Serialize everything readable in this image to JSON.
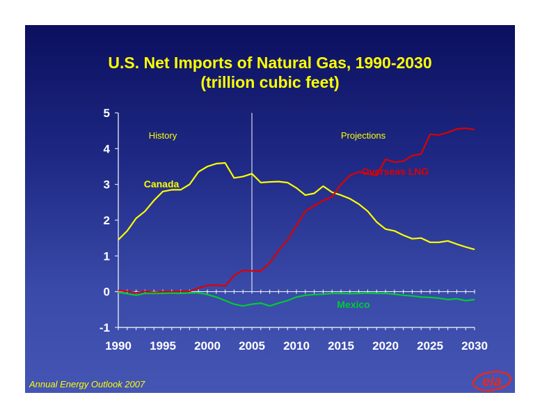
{
  "slide": {
    "title_line1": "U.S. Net Imports of Natural Gas, 1990-2030",
    "title_line2": "(trillion cubic feet)",
    "footer": "Annual Energy Outlook 2007",
    "logo_text": "eia"
  },
  "colors": {
    "title": "#ffff00",
    "axis": "#ffffff",
    "canada": "#ffff00",
    "lng": "#dd0000",
    "mexico": "#00cc33",
    "history_label": "#ffff00"
  },
  "chart_data": {
    "type": "line",
    "title": "U.S. Net Imports of Natural Gas, 1990-2030",
    "subtitle": "(trillion cubic feet)",
    "xlabel": "",
    "ylabel": "",
    "xlim": [
      1990,
      2030
    ],
    "ylim": [
      -1,
      5
    ],
    "xticks": [
      1990,
      1995,
      2000,
      2005,
      2010,
      2015,
      2020,
      2025,
      2030
    ],
    "yticks": [
      -1,
      0,
      1,
      2,
      3,
      4,
      5
    ],
    "grid": false,
    "divider_year": 2005,
    "annotations": [
      {
        "text": "History",
        "region": "left"
      },
      {
        "text": "Projections",
        "region": "right"
      }
    ],
    "x": [
      1990,
      1991,
      1992,
      1993,
      1994,
      1995,
      1996,
      1997,
      1998,
      1999,
      2000,
      2001,
      2002,
      2003,
      2004,
      2005,
      2006,
      2007,
      2008,
      2009,
      2010,
      2011,
      2012,
      2013,
      2014,
      2015,
      2016,
      2017,
      2018,
      2019,
      2020,
      2021,
      2022,
      2023,
      2024,
      2025,
      2026,
      2027,
      2028,
      2029,
      2030
    ],
    "series": [
      {
        "name": "Canada",
        "color": "#ffff00",
        "values": [
          1.45,
          1.7,
          2.05,
          2.25,
          2.55,
          2.8,
          2.85,
          2.85,
          3.0,
          3.35,
          3.5,
          3.58,
          3.6,
          3.18,
          3.22,
          3.3,
          3.05,
          3.07,
          3.08,
          3.05,
          2.9,
          2.7,
          2.75,
          2.95,
          2.78,
          2.7,
          2.6,
          2.45,
          2.25,
          1.95,
          1.75,
          1.7,
          1.58,
          1.48,
          1.5,
          1.38,
          1.38,
          1.42,
          1.33,
          1.25,
          1.18
        ]
      },
      {
        "name": "Overseas LNG",
        "color": "#dd0000",
        "values": [
          0.03,
          0.01,
          -0.03,
          0.01,
          -0.02,
          0.0,
          0.0,
          0.01,
          0.01,
          0.1,
          0.17,
          0.18,
          0.16,
          0.45,
          0.6,
          0.58,
          0.58,
          0.8,
          1.15,
          1.45,
          1.85,
          2.25,
          2.4,
          2.55,
          2.65,
          3.0,
          3.25,
          3.35,
          3.3,
          3.25,
          3.7,
          3.62,
          3.65,
          3.8,
          3.85,
          4.4,
          4.38,
          4.45,
          4.55,
          4.57,
          4.53
        ]
      },
      {
        "name": "Mexico",
        "color": "#00cc33",
        "values": [
          -0.02,
          -0.06,
          -0.1,
          -0.05,
          -0.05,
          -0.05,
          -0.04,
          -0.05,
          -0.04,
          -0.03,
          -0.08,
          -0.15,
          -0.25,
          -0.35,
          -0.4,
          -0.35,
          -0.32,
          -0.4,
          -0.32,
          -0.25,
          -0.15,
          -0.1,
          -0.08,
          -0.07,
          -0.05,
          -0.05,
          -0.06,
          -0.05,
          -0.04,
          -0.05,
          -0.05,
          -0.07,
          -0.1,
          -0.12,
          -0.15,
          -0.16,
          -0.18,
          -0.22,
          -0.2,
          -0.25,
          -0.22
        ]
      }
    ]
  }
}
